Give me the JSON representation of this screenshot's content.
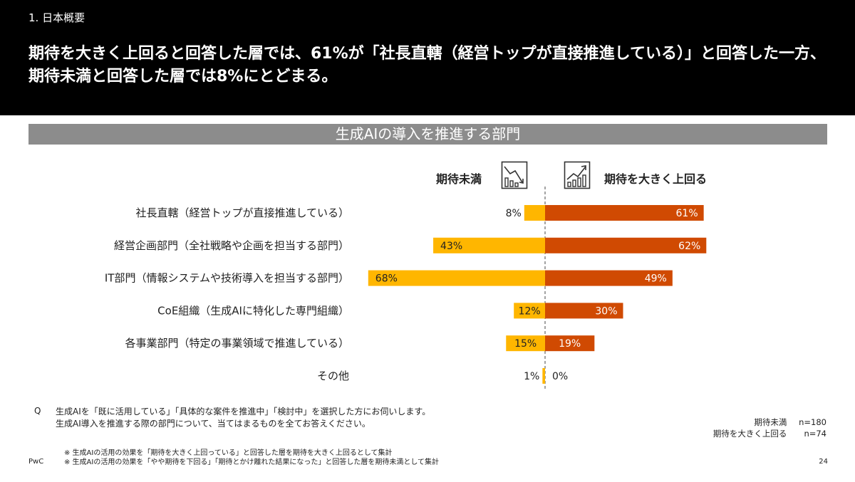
{
  "header": {
    "section": "1. 日本概要",
    "headline_line1": "期待を大きく上回ると回答した層では、61%が「社長直轄（経営トップが直接推進している）」と回答した一方、",
    "headline_line2": "期待未満と回答した層では8%にとどまる。"
  },
  "chart_data": {
    "type": "bar",
    "orientation": "horizontal-diverging",
    "title": "生成AIの導入を推進する部門",
    "categories": [
      "社長直轄（経営トップが直接推進している）",
      "経営企画部門（全社戦略や企画を担当する部門）",
      "IT部門（情報システムや技術導入を担当する部門）",
      "CoE組織（生成AIに特化した専門組織）",
      "各事業部門（特定の事業領域で推進している）",
      "その他"
    ],
    "series": [
      {
        "name": "期待未満",
        "values": [
          8,
          43,
          68,
          12,
          15,
          1
        ],
        "labels": [
          "8%",
          "43%",
          "68%",
          "12%",
          "15%",
          "1%"
        ],
        "color": "#FFB600",
        "side": "left"
      },
      {
        "name": "期待を大きく上回る",
        "values": [
          61,
          62,
          49,
          30,
          19,
          0
        ],
        "labels": [
          "61%",
          "62%",
          "49%",
          "30%",
          "19%",
          "0%"
        ],
        "color": "#D04A02",
        "side": "right"
      }
    ],
    "xlim": [
      0,
      100
    ]
  },
  "legend": {
    "left_icon": "declining-bar-chart-icon",
    "right_icon": "rising-bar-chart-icon"
  },
  "footer": {
    "question_marker": "Q",
    "question_line1": "生成AIを「既に活用している」「具体的な案件を推進中」「検討中」を選択した方にお伺いします。",
    "question_line2": "生成AI導入を推進する際の部門について、当てはまるものを全てお答えください。",
    "n_rows": [
      {
        "label": "期待未満",
        "n": "n=180"
      },
      {
        "label": "期待を大きく上回る",
        "n": "n=74"
      }
    ],
    "note1": "※ 生成AIの活用の効果を「期待を大きく上回っている」と回答した層を期待を大きく上回るとして集計",
    "note2": "※ 生成AIの活用の効果を「やや期待を下回る」「期待とかけ離れた結果になった」と回答した層を期待未満として集計",
    "brand": "PwC",
    "page": "24"
  }
}
